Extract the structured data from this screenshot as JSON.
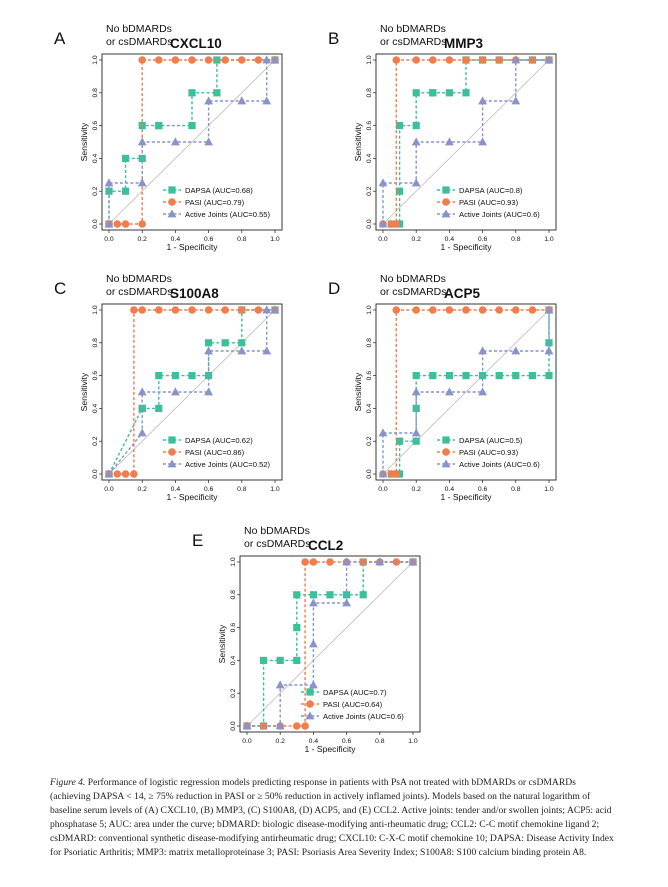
{
  "figure": {
    "caption_label": "Figure 4.",
    "caption_text": "Performance of logistic regression models predicting response in patients with PsA not treated with bDMARDs or csDMARDs (achieving DAPSA < 14, ≥ 75% reduction in PASI or ≥ 50% reduction in actively inflamed joints). Models based on the natural logarithm of baseline serum levels of (A) CXCL10, (B) MMP3, (C) S100A8, (D) ACP5, and (E) CCL2. Active joints: tender and/or swollen joints; ACP5: acid phosphatase 5; AUC: area under the curve; bDMARD: biologic disease-modifying anti-rheumatic drug; CCL2: C-C motif chemokine ligand 2; csDMARD: conventional synthetic disease-modifying antirheumatic drug; CXCL10: C-X-C motif chemokine 10; DAPSA: Disease Activity Index for Psoriatic Arthritis; MMP3: matrix metalloproteinase 3; PASI: Psoriasis Area Severity Index; S100A8: S100 calcium binding protein A8."
  },
  "colors": {
    "dapsa": "#3dbf9b",
    "pasi": "#ef7d4e",
    "joints": "#8a93c9",
    "diag": "#bbbbbb"
  },
  "chart_data": [
    {
      "panel_letter": "A",
      "type": "line",
      "subtitle_line1": "No bDMARDs",
      "subtitle_line2": "or csDMARDs",
      "title": "CXCL10",
      "xlabel": "1 - Specificity",
      "ylabel": "Sensitivity",
      "xlim": [
        0,
        1
      ],
      "ylim": [
        0,
        1
      ],
      "ticks": [
        "0.0",
        "0.2",
        "0.4",
        "0.6",
        "0.8",
        "1.0"
      ],
      "legend_position": "bottom-right",
      "series": [
        {
          "name": "DAPSA (AUC=0.68)",
          "key": "dapsa",
          "marker": "square",
          "x": [
            0,
            0,
            0.1,
            0.1,
            0.2,
            0.2,
            0.3,
            0.3,
            0.5,
            0.5,
            0.65,
            0.65,
            1
          ],
          "y": [
            0,
            0.2,
            0.2,
            0.4,
            0.4,
            0.6,
            0.6,
            0.6,
            0.6,
            0.8,
            0.8,
            1,
            1
          ]
        },
        {
          "name": "PASI (AUC=0.79)",
          "key": "pasi",
          "marker": "circle",
          "x": [
            0,
            0.05,
            0.1,
            0.2,
            0.2,
            0.3,
            0.4,
            0.5,
            0.6,
            0.7,
            0.8,
            0.9,
            1
          ],
          "y": [
            0,
            0,
            0,
            0,
            1,
            1,
            1,
            1,
            1,
            1,
            1,
            1,
            1
          ]
        },
        {
          "name": "Active Joints (AUC=0.55)",
          "key": "joints",
          "marker": "triangle",
          "x": [
            0,
            0,
            0.2,
            0.2,
            0.4,
            0.6,
            0.6,
            0.8,
            0.95,
            0.95,
            1
          ],
          "y": [
            0,
            0.25,
            0.25,
            0.5,
            0.5,
            0.5,
            0.75,
            0.75,
            0.75,
            1,
            1
          ]
        }
      ]
    },
    {
      "panel_letter": "B",
      "type": "line",
      "subtitle_line1": "No bDMARDs",
      "subtitle_line2": "or csDMARDs",
      "title": "MMP3",
      "xlabel": "1 - Specificity",
      "ylabel": "Sensitivity",
      "xlim": [
        0,
        1
      ],
      "ylim": [
        0,
        1
      ],
      "ticks": [
        "0.0",
        "0.2",
        "0.4",
        "0.6",
        "0.8",
        "1.0"
      ],
      "legend_position": "bottom-right",
      "series": [
        {
          "name": "DAPSA (AUC=0.8)",
          "key": "dapsa",
          "marker": "square",
          "x": [
            0.05,
            0.1,
            0.1,
            0.1,
            0.2,
            0.2,
            0.3,
            0.3,
            0.4,
            0.5,
            0.5,
            0.6,
            0.7,
            0.9,
            1
          ],
          "y": [
            0,
            0,
            0.2,
            0.6,
            0.6,
            0.8,
            0.8,
            0.8,
            0.8,
            0.8,
            1,
            1,
            1,
            1,
            1
          ]
        },
        {
          "name": "PASI (AUC=0.93)",
          "key": "pasi",
          "marker": "circle",
          "x": [
            0,
            0.05,
            0.08,
            0.08,
            0.2,
            0.3,
            0.4,
            0.5,
            0.6,
            0.7,
            0.8,
            0.9,
            1
          ],
          "y": [
            0,
            0,
            0,
            1,
            1,
            1,
            1,
            1,
            1,
            1,
            1,
            1,
            1
          ]
        },
        {
          "name": "Active Joints (AUC=0.6)",
          "key": "joints",
          "marker": "triangle",
          "x": [
            0,
            0,
            0.2,
            0.2,
            0.4,
            0.6,
            0.6,
            0.8,
            0.8,
            1
          ],
          "y": [
            0,
            0.25,
            0.25,
            0.5,
            0.5,
            0.5,
            0.75,
            0.75,
            1,
            1
          ]
        }
      ]
    },
    {
      "panel_letter": "C",
      "type": "line",
      "subtitle_line1": "No bDMARDs",
      "subtitle_line2": "or csDMARDs",
      "title": "S100A8",
      "xlabel": "1 - Specificity",
      "ylabel": "Sensitivity",
      "xlim": [
        0,
        1
      ],
      "ylim": [
        0,
        1
      ],
      "ticks": [
        "0.0",
        "0.2",
        "0.4",
        "0.6",
        "0.8",
        "1.0"
      ],
      "legend_position": "bottom-right",
      "series": [
        {
          "name": "DAPSA (AUC=0.62)",
          "key": "dapsa",
          "marker": "square",
          "x": [
            0,
            0.2,
            0.2,
            0.3,
            0.3,
            0.4,
            0.5,
            0.6,
            0.6,
            0.7,
            0.8,
            0.8,
            1
          ],
          "y": [
            0,
            0.4,
            0.4,
            0.4,
            0.6,
            0.6,
            0.6,
            0.6,
            0.8,
            0.8,
            0.8,
            1,
            1
          ]
        },
        {
          "name": "PASI (AUC=0.86)",
          "key": "pasi",
          "marker": "circle",
          "x": [
            0,
            0.05,
            0.1,
            0.15,
            0.15,
            0.2,
            0.3,
            0.4,
            0.5,
            0.6,
            0.7,
            0.8,
            0.9,
            1
          ],
          "y": [
            0,
            0,
            0,
            0,
            1,
            1,
            1,
            1,
            1,
            1,
            1,
            1,
            1,
            1
          ]
        },
        {
          "name": "Active Joints (AUC=0.52)",
          "key": "joints",
          "marker": "triangle",
          "x": [
            0,
            0.2,
            0.2,
            0.4,
            0.6,
            0.6,
            0.8,
            0.95,
            0.95,
            1
          ],
          "y": [
            0,
            0.25,
            0.5,
            0.5,
            0.5,
            0.75,
            0.75,
            0.75,
            1,
            1
          ]
        }
      ]
    },
    {
      "panel_letter": "D",
      "type": "line",
      "subtitle_line1": "No bDMARDs",
      "subtitle_line2": "or csDMARDs",
      "title": "ACP5",
      "xlabel": "1 - Specificity",
      "ylabel": "Sensitivity",
      "xlim": [
        0,
        1
      ],
      "ylim": [
        0,
        1
      ],
      "ticks": [
        "0.0",
        "0.2",
        "0.4",
        "0.6",
        "0.8",
        "1.0"
      ],
      "legend_position": "bottom-right",
      "series": [
        {
          "name": "DAPSA (AUC=0.5)",
          "key": "dapsa",
          "marker": "square",
          "x": [
            0.05,
            0.1,
            0.1,
            0.2,
            0.2,
            0.2,
            0.3,
            0.4,
            0.5,
            0.6,
            0.7,
            0.8,
            0.9,
            1,
            1,
            1
          ],
          "y": [
            0,
            0,
            0.2,
            0.2,
            0.4,
            0.6,
            0.6,
            0.6,
            0.6,
            0.6,
            0.6,
            0.6,
            0.6,
            0.6,
            0.8,
            1
          ]
        },
        {
          "name": "PASI (AUC=0.93)",
          "key": "pasi",
          "marker": "circle",
          "x": [
            0,
            0.05,
            0.08,
            0.08,
            0.2,
            0.3,
            0.4,
            0.5,
            0.6,
            0.7,
            0.8,
            0.9,
            1
          ],
          "y": [
            0,
            0,
            0,
            1,
            1,
            1,
            1,
            1,
            1,
            1,
            1,
            1,
            1
          ]
        },
        {
          "name": "Active Joints (AUC=0.6)",
          "key": "joints",
          "marker": "triangle",
          "x": [
            0,
            0,
            0.2,
            0.2,
            0.4,
            0.6,
            0.6,
            0.8,
            1,
            1
          ],
          "y": [
            0,
            0.25,
            0.25,
            0.5,
            0.5,
            0.5,
            0.75,
            0.75,
            0.75,
            1
          ]
        }
      ]
    },
    {
      "panel_letter": "E",
      "type": "line",
      "subtitle_line1": "No bDMARDs",
      "subtitle_line2": "or csDMARDs",
      "title": "CCL2",
      "xlabel": "1 - Specificity",
      "ylabel": "Sensitivity",
      "xlim": [
        0,
        1
      ],
      "ylim": [
        0,
        1
      ],
      "ticks": [
        "0.0",
        "0.2",
        "0.4",
        "0.6",
        "0.8",
        "1.0"
      ],
      "legend_position": "bottom-right",
      "series": [
        {
          "name": "DAPSA (AUC=0.7)",
          "key": "dapsa",
          "marker": "square",
          "x": [
            0,
            0.1,
            0.1,
            0.2,
            0.3,
            0.3,
            0.3,
            0.4,
            0.5,
            0.6,
            0.7,
            0.7,
            1
          ],
          "y": [
            0,
            0,
            0.4,
            0.4,
            0.4,
            0.6,
            0.8,
            0.8,
            0.8,
            0.8,
            0.8,
            1,
            1
          ]
        },
        {
          "name": "PASI (AUC=0.64)",
          "key": "pasi",
          "marker": "circle",
          "x": [
            0,
            0.1,
            0.2,
            0.3,
            0.35,
            0.35,
            0.4,
            0.5,
            0.6,
            0.7,
            0.8,
            0.9,
            1
          ],
          "y": [
            0,
            0,
            0,
            0,
            0,
            1,
            1,
            1,
            1,
            1,
            1,
            1,
            1
          ]
        },
        {
          "name": "Active Joints (AUC=0.6)",
          "key": "joints",
          "marker": "triangle",
          "x": [
            0,
            0.2,
            0.2,
            0.4,
            0.4,
            0.4,
            0.6,
            0.6,
            0.8,
            1
          ],
          "y": [
            0,
            0,
            0.25,
            0.25,
            0.5,
            0.75,
            0.75,
            1,
            1,
            1
          ]
        }
      ]
    }
  ]
}
